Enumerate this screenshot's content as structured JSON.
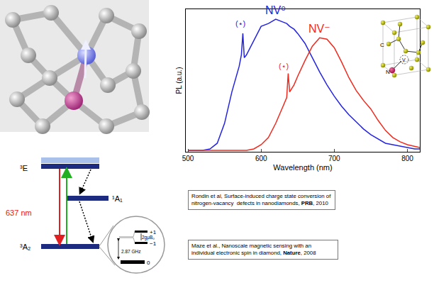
{
  "chart_data": {
    "type": "line",
    "xlabel": "Wavelength (nm)",
    "ylabel": "PL (a.u.)",
    "x": [
      500,
      510,
      520,
      530,
      540,
      550,
      560,
      570,
      573,
      575,
      577,
      580,
      590,
      600,
      610,
      620,
      630,
      635,
      637,
      639,
      645,
      650,
      660,
      670,
      680,
      690,
      700,
      710,
      720,
      730,
      740,
      750,
      760,
      770,
      780,
      790,
      800,
      810,
      817
    ],
    "series": [
      {
        "name": "NV⁰",
        "color": "#2424e0",
        "values": [
          0.01,
          0.01,
          0.01,
          0.02,
          0.06,
          0.2,
          0.42,
          0.6,
          0.68,
          0.83,
          0.66,
          0.68,
          0.78,
          0.88,
          0.9,
          0.93,
          0.91,
          0.9,
          0.89,
          0.88,
          0.86,
          0.83,
          0.76,
          0.66,
          0.56,
          0.47,
          0.39,
          0.32,
          0.26,
          0.21,
          0.16,
          0.12,
          0.09,
          0.06,
          0.05,
          0.04,
          0.03,
          0.02,
          0.02
        ]
      },
      {
        "name": "NV⁻",
        "color": "#f02a1e",
        "values": [
          0.01,
          0.01,
          0.01,
          0.01,
          0.01,
          0.01,
          0.01,
          0.01,
          0.01,
          0.01,
          0.01,
          0.01,
          0.02,
          0.05,
          0.1,
          0.2,
          0.32,
          0.38,
          0.55,
          0.42,
          0.47,
          0.53,
          0.64,
          0.74,
          0.8,
          0.79,
          0.73,
          0.63,
          0.52,
          0.43,
          0.36,
          0.3,
          0.22,
          0.15,
          0.1,
          0.07,
          0.05,
          0.04,
          0.03
        ]
      }
    ],
    "annotations": [
      {
        "text": "(⋆)",
        "x": 572,
        "y": 0.9,
        "color": "#2424e0"
      },
      {
        "text": "(⋆)",
        "x": 631,
        "y": 0.6,
        "color": "#f02a1e"
      }
    ],
    "xlim": [
      497,
      817
    ],
    "xticks": [
      500,
      600,
      700,
      800
    ],
    "ylim": [
      0,
      1
    ],
    "tick_labels": "x",
    "grid": false
  },
  "diagram": {
    "energy_levels": {
      "excited": "³E",
      "singlet": "¹A₁",
      "ground": "³A₂",
      "transition": "637 nm",
      "sublevels": {
        "plus": "+1",
        "minus": "−1",
        "zero": "0"
      },
      "zeeman": "2gμB₀",
      "zero_field": "2.87 GHz"
    },
    "crystal": {
      "carbon": "C",
      "nitrogen": "N",
      "vacancy": "V"
    }
  },
  "references": [
    [
      {
        "text": "Rondin et al, Surface-induced charge state conversion of nitrogen-vacancy  defects in nanodiamonds, ",
        "bold": false
      },
      {
        "text": "PRB",
        "bold": true
      },
      {
        "text": ", 2010",
        "bold": false
      }
    ],
    [
      {
        "text": "Maze et al., Nanoscale magnetic sensing with an individual electronic spin in diamond, ",
        "bold": false
      },
      {
        "text": "Nature",
        "bold": true
      },
      {
        "text": ", 2008",
        "bold": false
      }
    ]
  ]
}
